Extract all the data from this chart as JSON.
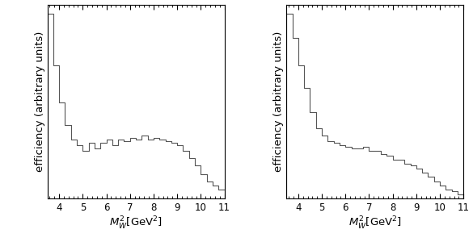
{
  "left_hist": {
    "bin_edges": [
      3.5,
      3.75,
      4.0,
      4.25,
      4.5,
      4.75,
      5.0,
      5.25,
      5.5,
      5.75,
      6.0,
      6.25,
      6.5,
      6.75,
      7.0,
      7.25,
      7.5,
      7.75,
      8.0,
      8.25,
      8.5,
      8.75,
      9.0,
      9.25,
      9.5,
      9.75,
      10.0,
      10.25,
      10.5,
      10.75,
      11.0
    ],
    "values": [
      1.0,
      0.72,
      0.52,
      0.4,
      0.32,
      0.29,
      0.26,
      0.3,
      0.27,
      0.3,
      0.32,
      0.29,
      0.32,
      0.31,
      0.33,
      0.32,
      0.34,
      0.32,
      0.33,
      0.32,
      0.31,
      0.3,
      0.29,
      0.26,
      0.22,
      0.18,
      0.13,
      0.09,
      0.07,
      0.05
    ]
  },
  "right_hist": {
    "bin_edges": [
      3.5,
      3.75,
      4.0,
      4.25,
      4.5,
      4.75,
      5.0,
      5.25,
      5.5,
      5.75,
      6.0,
      6.25,
      6.5,
      6.75,
      7.0,
      7.25,
      7.5,
      7.75,
      8.0,
      8.25,
      8.5,
      8.75,
      9.0,
      9.25,
      9.5,
      9.75,
      10.0,
      10.25,
      10.5,
      10.75,
      11.0
    ],
    "values": [
      1.0,
      0.87,
      0.72,
      0.6,
      0.47,
      0.38,
      0.34,
      0.31,
      0.3,
      0.29,
      0.28,
      0.27,
      0.27,
      0.28,
      0.26,
      0.26,
      0.24,
      0.23,
      0.21,
      0.21,
      0.19,
      0.18,
      0.16,
      0.14,
      0.12,
      0.09,
      0.07,
      0.05,
      0.04,
      0.02
    ]
  },
  "xlabel": "$M_W^2[\\mathrm{GeV}^2]$",
  "ylabel": "efficiency (arbitrary units)",
  "xlim": [
    3.5,
    11.0
  ],
  "ylim": [
    0.0,
    1.05
  ],
  "xticks": [
    4,
    5,
    6,
    7,
    8,
    9,
    10,
    11
  ],
  "line_color": "#555555",
  "background_color": "#ffffff",
  "tick_label_size": 8.5,
  "axis_label_size": 9.5
}
